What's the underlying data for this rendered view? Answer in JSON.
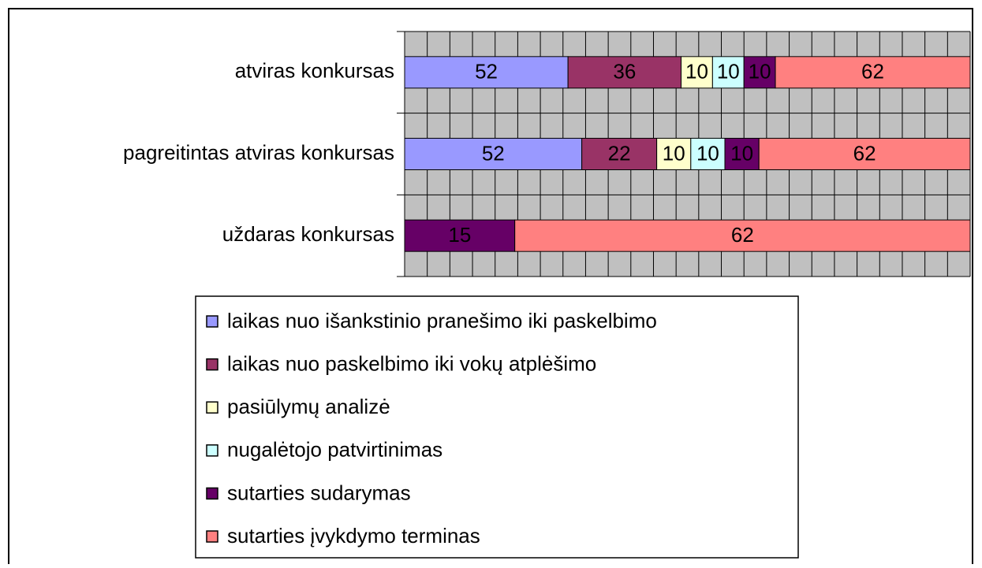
{
  "chart_data": {
    "type": "bar",
    "orientation": "horizontal",
    "stacking": "percent",
    "categories": [
      "atviras konkursas",
      "pagreitintas atviras konkursas",
      "uždaras konkursas"
    ],
    "series": [
      {
        "name": "laikas nuo išankstinio pranešimo iki paskelbimo",
        "color": "#9999ff",
        "values": [
          52,
          52,
          null
        ]
      },
      {
        "name": "laikas nuo paskelbimo iki vokų atplėšimo",
        "color": "#993366",
        "values": [
          36,
          22,
          null
        ]
      },
      {
        "name": "pasiūlymų analizė",
        "color": "#ffffcc",
        "values": [
          10,
          10,
          null
        ]
      },
      {
        "name": "nugalėtojo patvirtinimas",
        "color": "#ccffff",
        "values": [
          10,
          10,
          null
        ]
      },
      {
        "name": "sutarties sudarymas",
        "color": "#660066",
        "values": [
          10,
          10,
          15
        ]
      },
      {
        "name": "sutarties įvykdymo terminas",
        "color": "#ff8080",
        "values": [
          62,
          62,
          62
        ]
      }
    ],
    "xlim": [
      0,
      100
    ],
    "xticks": [
      0,
      4,
      8,
      12,
      16,
      20,
      24,
      28,
      32,
      36,
      40,
      44,
      48,
      52,
      56,
      60,
      64,
      68,
      72,
      76,
      80,
      84,
      88,
      92,
      96,
      100
    ],
    "grid": true,
    "data_labels": true,
    "legend": "bottom"
  }
}
